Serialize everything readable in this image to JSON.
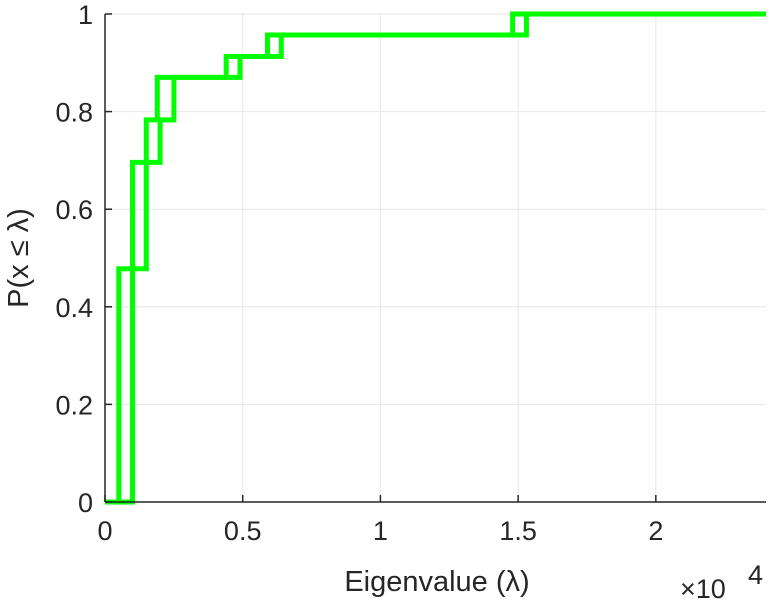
{
  "chart_data": {
    "type": "line",
    "step": true,
    "xlabel": "Eigenvalue (λ)",
    "ylabel": "P(x ≤ λ)",
    "x_exponent_label": "×10",
    "x_exponent_value": "4",
    "xlim": [
      0,
      24000
    ],
    "ylim": [
      0,
      1
    ],
    "grid": true,
    "x_ticks": [
      0,
      5000,
      10000,
      15000,
      20000
    ],
    "x_tick_labels": [
      "0",
      "0.5",
      "1",
      "1.5",
      "2"
    ],
    "y_ticks": [
      0,
      0.2,
      0.4,
      0.6,
      0.8,
      1
    ],
    "y_tick_labels": [
      "0",
      "0.2",
      "0.4",
      "0.6",
      "0.8",
      "1"
    ],
    "color": "#00ff00",
    "series": [
      {
        "x": [
          0,
          500,
          500,
          1000,
          1000,
          1500,
          1500,
          1900,
          1900,
          4400,
          4400,
          5900,
          5900,
          14800,
          14800,
          24000
        ],
        "y": [
          0,
          0,
          0.478,
          0.478,
          0.696,
          0.696,
          0.783,
          0.783,
          0.87,
          0.87,
          0.913,
          0.913,
          0.957,
          0.957,
          1,
          1
        ]
      },
      {
        "x": [
          0,
          1000,
          1000,
          1500,
          1500,
          2000,
          2000,
          2500,
          2500,
          4900,
          4900,
          6400,
          6400,
          15300,
          15300,
          24000
        ],
        "y": [
          0,
          0,
          0.478,
          0.478,
          0.696,
          0.696,
          0.783,
          0.783,
          0.87,
          0.87,
          0.913,
          0.913,
          0.957,
          0.957,
          1,
          1
        ]
      }
    ]
  }
}
